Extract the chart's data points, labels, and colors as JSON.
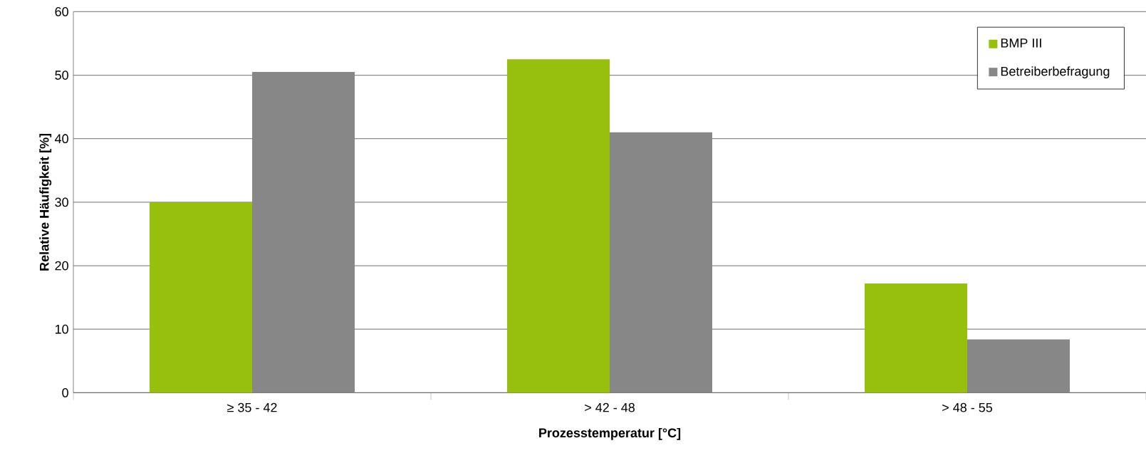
{
  "chart_data": {
    "type": "bar",
    "xlabel": "Prozesstemperatur [°C]",
    "ylabel": "Relative Häufigkeit [%]",
    "categories": [
      "≥ 35 - 42",
      "> 42 - 48",
      "> 48 - 55"
    ],
    "series": [
      {
        "name": "BMP III",
        "color": "#97bf0d",
        "values": [
          30,
          52.5,
          17.2
        ]
      },
      {
        "name": "Betreiberbefragung",
        "color": "#878787",
        "values": [
          50.5,
          41,
          8.4
        ]
      }
    ],
    "ylim": [
      0,
      60
    ],
    "yticks": [
      0,
      10,
      20,
      30,
      40,
      50,
      60
    ],
    "grid": "y",
    "legend": "top right"
  }
}
